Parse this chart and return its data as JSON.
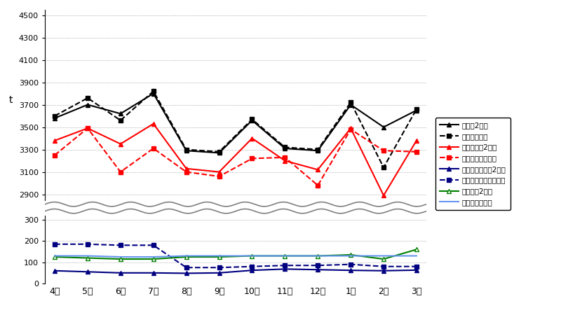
{
  "months": [
    "4月",
    "5月",
    "6月",
    "7月",
    "8月",
    "9月",
    "10月",
    "11月",
    "12月",
    "1月",
    "2月",
    "3月"
  ],
  "gokei_2": [
    3580,
    3700,
    3620,
    3800,
    3290,
    3270,
    3560,
    3310,
    3290,
    3700,
    3500,
    3650
  ],
  "gokei_m": [
    3600,
    3760,
    3560,
    3820,
    3300,
    3280,
    3570,
    3320,
    3300,
    3720,
    3140,
    3660
  ],
  "moyas_2": [
    3380,
    3490,
    3350,
    3530,
    3130,
    3100,
    3400,
    3200,
    3120,
    3490,
    2890,
    3380
  ],
  "moyas_m": [
    3250,
    3490,
    3100,
    3310,
    3100,
    3060,
    3220,
    3230,
    2980,
    3480,
    3290,
    3280
  ],
  "moyasanai_2": [
    60,
    55,
    50,
    50,
    48,
    50,
    62,
    68,
    65,
    62,
    60,
    63
  ],
  "moyasanai_m": [
    185,
    185,
    180,
    180,
    75,
    75,
    80,
    85,
    85,
    90,
    80,
    80
  ],
  "sodai_2": [
    125,
    120,
    115,
    115,
    125,
    125,
    130,
    130,
    130,
    135,
    115,
    160
  ],
  "sodai_m": [
    130,
    130,
    125,
    125,
    130,
    130,
    130,
    130,
    130,
    130,
    130,
    130
  ],
  "upper_yticks": [
    2900,
    3100,
    3300,
    3500,
    3700,
    3900,
    4100,
    4300,
    4500
  ],
  "lower_yticks": [
    0,
    100,
    200,
    300
  ],
  "upper_ylim": [
    2850,
    4550
  ],
  "lower_ylim": [
    0,
    320
  ],
  "ylabel": "t",
  "legend_labels": [
    "合計量2年度",
    "合計量元年度",
    "燃やすごみ2年度",
    "燃やすごみ元年度",
    "燃やさないごみ2年度",
    "燃やさないごみ元年度",
    "粗大ごみ2年度",
    "粗大ごみ元年度"
  ]
}
